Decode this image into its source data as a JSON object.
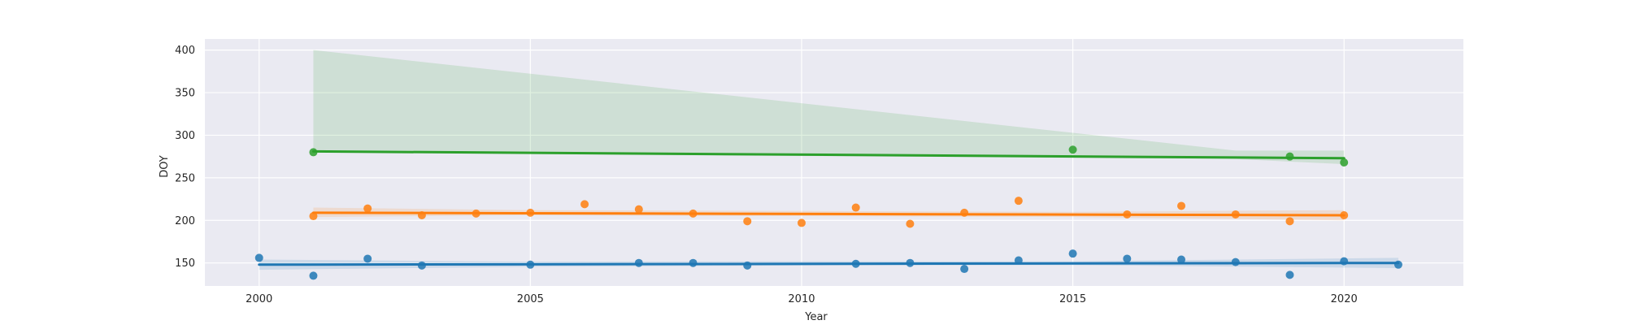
{
  "chart_data": {
    "type": "scatter",
    "title": "",
    "xlabel": "Year",
    "ylabel": "DOY",
    "xlim": [
      1999,
      2022.2
    ],
    "ylim": [
      123,
      413
    ],
    "xticks": [
      2000,
      2005,
      2010,
      2015,
      2020
    ],
    "yticks": [
      150,
      200,
      250,
      300,
      350,
      400
    ],
    "grid": true,
    "legend": "none",
    "colors": {
      "background": "#eaeaf2",
      "grid": "#ffffff",
      "series_1": "#1f77b4",
      "series_2": "#ff7f0e",
      "series_3": "#2ca02c"
    },
    "series": [
      {
        "color": "#1f77b4",
        "points": [
          [
            2000,
            156
          ],
          [
            2001,
            135
          ],
          [
            2002,
            155
          ],
          [
            2003,
            147
          ],
          [
            2005,
            148
          ],
          [
            2007,
            150
          ],
          [
            2008,
            150
          ],
          [
            2009,
            147
          ],
          [
            2011,
            149
          ],
          [
            2012,
            150
          ],
          [
            2013,
            143
          ],
          [
            2014,
            153
          ],
          [
            2015,
            161
          ],
          [
            2016,
            155
          ],
          [
            2017,
            154
          ],
          [
            2018,
            151
          ],
          [
            2019,
            136
          ],
          [
            2020,
            152
          ],
          [
            2021,
            148
          ]
        ],
        "trend": [
          [
            2000,
            148
          ],
          [
            2021,
            150
          ]
        ],
        "ci": [
          [
            2000,
            142,
            154
          ],
          [
            2005,
            145.5,
            151.5
          ],
          [
            2010,
            147,
            152
          ],
          [
            2015,
            147.5,
            152
          ],
          [
            2021,
            144,
            156
          ]
        ]
      },
      {
        "color": "#ff7f0e",
        "points": [
          [
            2001,
            205
          ],
          [
            2002,
            214
          ],
          [
            2003,
            206
          ],
          [
            2004,
            208
          ],
          [
            2005,
            209
          ],
          [
            2006,
            219
          ],
          [
            2007,
            213
          ],
          [
            2008,
            208
          ],
          [
            2009,
            199
          ],
          [
            2010,
            197
          ],
          [
            2011,
            215
          ],
          [
            2012,
            196
          ],
          [
            2013,
            209
          ],
          [
            2014,
            223
          ],
          [
            2016,
            207
          ],
          [
            2017,
            217
          ],
          [
            2018,
            207
          ],
          [
            2019,
            199
          ],
          [
            2020,
            206
          ]
        ],
        "trend": [
          [
            2001,
            209
          ],
          [
            2020,
            206
          ]
        ],
        "ci": [
          [
            2001,
            204,
            215
          ],
          [
            2005,
            206,
            212
          ],
          [
            2010,
            205,
            211
          ],
          [
            2015,
            204,
            210
          ],
          [
            2020,
            200,
            212
          ]
        ]
      },
      {
        "color": "#2ca02c",
        "points": [
          [
            2001,
            280
          ],
          [
            2015,
            283
          ],
          [
            2019,
            275
          ],
          [
            2020,
            268
          ]
        ],
        "trend": [
          [
            2001,
            281
          ],
          [
            2020,
            273
          ]
        ],
        "ci": [
          [
            2001,
            280,
            400
          ],
          [
            2018,
            272,
            282
          ],
          [
            2020,
            266,
            282
          ]
        ]
      }
    ]
  }
}
